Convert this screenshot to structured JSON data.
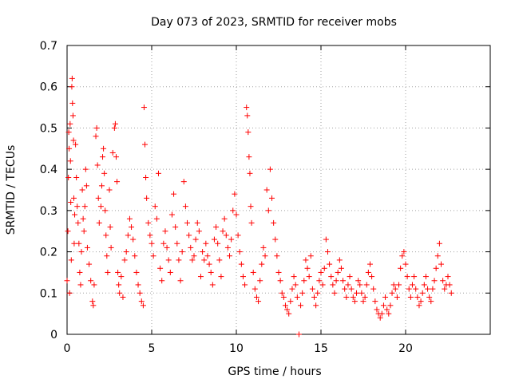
{
  "chart_data": {
    "type": "scatter",
    "title": "Day 073 of 2023, SRMTID for receiver mobs",
    "xlabel": "GPS time / hours",
    "ylabel": "SRMTID / TECUs",
    "xlim": [
      0,
      25
    ],
    "ylim": [
      0,
      0.7
    ],
    "x_ticks": [
      0,
      5,
      10,
      15,
      20
    ],
    "y_ticks": [
      0,
      0.1,
      0.2,
      0.3,
      0.4,
      0.5,
      0.6,
      0.7
    ],
    "x_tick_labels": [
      "0",
      "5",
      "10",
      "15",
      "20"
    ],
    "y_tick_labels": [
      "0",
      "0.1",
      "0.2",
      "0.3",
      "0.4",
      "0.5",
      "0.6",
      "0.7"
    ],
    "grid": true,
    "marker": "plus",
    "color": "#ff0000",
    "series": [
      {
        "name": "mobs",
        "points": [
          [
            0.0,
            0.13
          ],
          [
            0.05,
            0.25
          ],
          [
            0.08,
            0.38
          ],
          [
            0.1,
            0.49
          ],
          [
            0.12,
            0.45
          ],
          [
            0.15,
            0.1
          ],
          [
            0.18,
            0.51
          ],
          [
            0.2,
            0.42
          ],
          [
            0.22,
            0.32
          ],
          [
            0.25,
            0.18
          ],
          [
            0.28,
            0.6
          ],
          [
            0.3,
            0.62
          ],
          [
            0.32,
            0.56
          ],
          [
            0.35,
            0.53
          ],
          [
            0.38,
            0.47
          ],
          [
            0.4,
            0.33
          ],
          [
            0.42,
            0.22
          ],
          [
            0.45,
            0.29
          ],
          [
            0.5,
            0.46
          ],
          [
            0.55,
            0.38
          ],
          [
            0.6,
            0.31
          ],
          [
            0.65,
            0.27
          ],
          [
            0.7,
            0.22
          ],
          [
            0.75,
            0.15
          ],
          [
            0.8,
            0.12
          ],
          [
            0.85,
            0.2
          ],
          [
            0.9,
            0.35
          ],
          [
            0.95,
            0.28
          ],
          [
            1.0,
            0.25
          ],
          [
            1.05,
            0.31
          ],
          [
            1.1,
            0.4
          ],
          [
            1.15,
            0.36
          ],
          [
            1.2,
            0.21
          ],
          [
            1.3,
            0.17
          ],
          [
            1.4,
            0.13
          ],
          [
            1.5,
            0.08
          ],
          [
            1.55,
            0.07
          ],
          [
            1.6,
            0.12
          ],
          [
            1.7,
            0.48
          ],
          [
            1.75,
            0.5
          ],
          [
            1.8,
            0.41
          ],
          [
            1.85,
            0.33
          ],
          [
            1.9,
            0.27
          ],
          [
            2.0,
            0.31
          ],
          [
            2.05,
            0.36
          ],
          [
            2.1,
            0.43
          ],
          [
            2.15,
            0.45
          ],
          [
            2.2,
            0.39
          ],
          [
            2.25,
            0.3
          ],
          [
            2.3,
            0.24
          ],
          [
            2.35,
            0.19
          ],
          [
            2.4,
            0.15
          ],
          [
            2.5,
            0.35
          ],
          [
            2.55,
            0.26
          ],
          [
            2.6,
            0.21
          ],
          [
            2.7,
            0.44
          ],
          [
            2.8,
            0.5
          ],
          [
            2.85,
            0.51
          ],
          [
            2.9,
            0.43
          ],
          [
            2.95,
            0.37
          ],
          [
            3.0,
            0.15
          ],
          [
            3.05,
            0.12
          ],
          [
            3.1,
            0.1
          ],
          [
            3.2,
            0.14
          ],
          [
            3.3,
            0.09
          ],
          [
            3.4,
            0.18
          ],
          [
            3.5,
            0.2
          ],
          [
            3.6,
            0.24
          ],
          [
            3.7,
            0.28
          ],
          [
            3.8,
            0.26
          ],
          [
            3.9,
            0.23
          ],
          [
            4.0,
            0.19
          ],
          [
            4.1,
            0.15
          ],
          [
            4.2,
            0.12
          ],
          [
            4.3,
            0.1
          ],
          [
            4.4,
            0.08
          ],
          [
            4.5,
            0.07
          ],
          [
            4.55,
            0.55
          ],
          [
            4.6,
            0.46
          ],
          [
            4.65,
            0.38
          ],
          [
            4.7,
            0.33
          ],
          [
            4.8,
            0.27
          ],
          [
            4.9,
            0.24
          ],
          [
            5.0,
            0.22
          ],
          [
            5.1,
            0.19
          ],
          [
            5.2,
            0.31
          ],
          [
            5.3,
            0.28
          ],
          [
            5.4,
            0.39
          ],
          [
            5.5,
            0.16
          ],
          [
            5.6,
            0.13
          ],
          [
            5.7,
            0.22
          ],
          [
            5.8,
            0.25
          ],
          [
            5.9,
            0.21
          ],
          [
            6.0,
            0.18
          ],
          [
            6.1,
            0.15
          ],
          [
            6.2,
            0.29
          ],
          [
            6.3,
            0.34
          ],
          [
            6.4,
            0.26
          ],
          [
            6.5,
            0.22
          ],
          [
            6.6,
            0.18
          ],
          [
            6.7,
            0.13
          ],
          [
            6.8,
            0.2
          ],
          [
            6.9,
            0.37
          ],
          [
            7.0,
            0.31
          ],
          [
            7.1,
            0.27
          ],
          [
            7.2,
            0.24
          ],
          [
            7.3,
            0.21
          ],
          [
            7.4,
            0.18
          ],
          [
            7.5,
            0.19
          ],
          [
            7.6,
            0.23
          ],
          [
            7.7,
            0.27
          ],
          [
            7.8,
            0.25
          ],
          [
            7.9,
            0.14
          ],
          [
            8.0,
            0.2
          ],
          [
            8.1,
            0.18
          ],
          [
            8.2,
            0.22
          ],
          [
            8.3,
            0.19
          ],
          [
            8.4,
            0.17
          ],
          [
            8.5,
            0.15
          ],
          [
            8.6,
            0.12
          ],
          [
            8.7,
            0.23
          ],
          [
            8.8,
            0.26
          ],
          [
            8.9,
            0.22
          ],
          [
            9.0,
            0.18
          ],
          [
            9.1,
            0.14
          ],
          [
            9.2,
            0.25
          ],
          [
            9.3,
            0.28
          ],
          [
            9.4,
            0.24
          ],
          [
            9.5,
            0.21
          ],
          [
            9.6,
            0.19
          ],
          [
            9.7,
            0.23
          ],
          [
            9.8,
            0.3
          ],
          [
            9.9,
            0.34
          ],
          [
            10.0,
            0.29
          ],
          [
            10.1,
            0.24
          ],
          [
            10.2,
            0.2
          ],
          [
            10.3,
            0.17
          ],
          [
            10.4,
            0.14
          ],
          [
            10.5,
            0.12
          ],
          [
            10.6,
            0.55
          ],
          [
            10.65,
            0.53
          ],
          [
            10.7,
            0.49
          ],
          [
            10.75,
            0.43
          ],
          [
            10.8,
            0.39
          ],
          [
            10.85,
            0.31
          ],
          [
            10.9,
            0.27
          ],
          [
            11.0,
            0.15
          ],
          [
            11.1,
            0.11
          ],
          [
            11.2,
            0.09
          ],
          [
            11.3,
            0.08
          ],
          [
            11.4,
            0.13
          ],
          [
            11.5,
            0.17
          ],
          [
            11.6,
            0.21
          ],
          [
            11.7,
            0.19
          ],
          [
            11.8,
            0.35
          ],
          [
            11.9,
            0.3
          ],
          [
            12.0,
            0.4
          ],
          [
            12.1,
            0.33
          ],
          [
            12.2,
            0.27
          ],
          [
            12.3,
            0.23
          ],
          [
            12.4,
            0.19
          ],
          [
            12.5,
            0.15
          ],
          [
            12.6,
            0.13
          ],
          [
            12.7,
            0.1
          ],
          [
            12.8,
            0.09
          ],
          [
            12.9,
            0.07
          ],
          [
            13.0,
            0.06
          ],
          [
            13.1,
            0.05
          ],
          [
            13.2,
            0.08
          ],
          [
            13.3,
            0.11
          ],
          [
            13.4,
            0.14
          ],
          [
            13.5,
            0.12
          ],
          [
            13.6,
            0.09
          ],
          [
            13.7,
            0.0
          ],
          [
            13.8,
            0.07
          ],
          [
            13.9,
            0.1
          ],
          [
            14.0,
            0.13
          ],
          [
            14.1,
            0.18
          ],
          [
            14.2,
            0.16
          ],
          [
            14.3,
            0.14
          ],
          [
            14.4,
            0.19
          ],
          [
            14.5,
            0.11
          ],
          [
            14.6,
            0.09
          ],
          [
            14.7,
            0.07
          ],
          [
            14.8,
            0.1
          ],
          [
            14.9,
            0.13
          ],
          [
            15.0,
            0.15
          ],
          [
            15.1,
            0.12
          ],
          [
            15.2,
            0.16
          ],
          [
            15.3,
            0.23
          ],
          [
            15.4,
            0.2
          ],
          [
            15.5,
            0.17
          ],
          [
            15.6,
            0.14
          ],
          [
            15.7,
            0.12
          ],
          [
            15.8,
            0.1
          ],
          [
            15.9,
            0.13
          ],
          [
            16.0,
            0.15
          ],
          [
            16.1,
            0.18
          ],
          [
            16.2,
            0.16
          ],
          [
            16.3,
            0.13
          ],
          [
            16.4,
            0.11
          ],
          [
            16.5,
            0.09
          ],
          [
            16.6,
            0.12
          ],
          [
            16.7,
            0.14
          ],
          [
            16.8,
            0.11
          ],
          [
            16.9,
            0.09
          ],
          [
            17.0,
            0.08
          ],
          [
            17.1,
            0.1
          ],
          [
            17.2,
            0.13
          ],
          [
            17.3,
            0.12
          ],
          [
            17.4,
            0.1
          ],
          [
            17.5,
            0.08
          ],
          [
            17.6,
            0.09
          ],
          [
            17.7,
            0.12
          ],
          [
            17.8,
            0.15
          ],
          [
            17.9,
            0.17
          ],
          [
            18.0,
            0.14
          ],
          [
            18.1,
            0.11
          ],
          [
            18.2,
            0.08
          ],
          [
            18.3,
            0.06
          ],
          [
            18.4,
            0.05
          ],
          [
            18.5,
            0.04
          ],
          [
            18.6,
            0.05
          ],
          [
            18.7,
            0.07
          ],
          [
            18.8,
            0.09
          ],
          [
            18.9,
            0.06
          ],
          [
            19.0,
            0.05
          ],
          [
            19.1,
            0.07
          ],
          [
            19.2,
            0.1
          ],
          [
            19.3,
            0.12
          ],
          [
            19.4,
            0.11
          ],
          [
            19.5,
            0.09
          ],
          [
            19.6,
            0.12
          ],
          [
            19.7,
            0.16
          ],
          [
            19.8,
            0.19
          ],
          [
            19.9,
            0.2
          ],
          [
            20.0,
            0.17
          ],
          [
            20.1,
            0.14
          ],
          [
            20.2,
            0.11
          ],
          [
            20.3,
            0.09
          ],
          [
            20.4,
            0.12
          ],
          [
            20.5,
            0.14
          ],
          [
            20.6,
            0.11
          ],
          [
            20.7,
            0.09
          ],
          [
            20.8,
            0.07
          ],
          [
            20.9,
            0.08
          ],
          [
            21.0,
            0.1
          ],
          [
            21.1,
            0.12
          ],
          [
            21.2,
            0.14
          ],
          [
            21.3,
            0.11
          ],
          [
            21.4,
            0.09
          ],
          [
            21.5,
            0.08
          ],
          [
            21.6,
            0.11
          ],
          [
            21.7,
            0.13
          ],
          [
            21.8,
            0.16
          ],
          [
            21.9,
            0.19
          ],
          [
            22.0,
            0.22
          ],
          [
            22.1,
            0.17
          ],
          [
            22.2,
            0.13
          ],
          [
            22.3,
            0.11
          ],
          [
            22.4,
            0.12
          ],
          [
            22.5,
            0.14
          ],
          [
            22.6,
            0.12
          ],
          [
            22.7,
            0.1
          ]
        ]
      }
    ]
  }
}
